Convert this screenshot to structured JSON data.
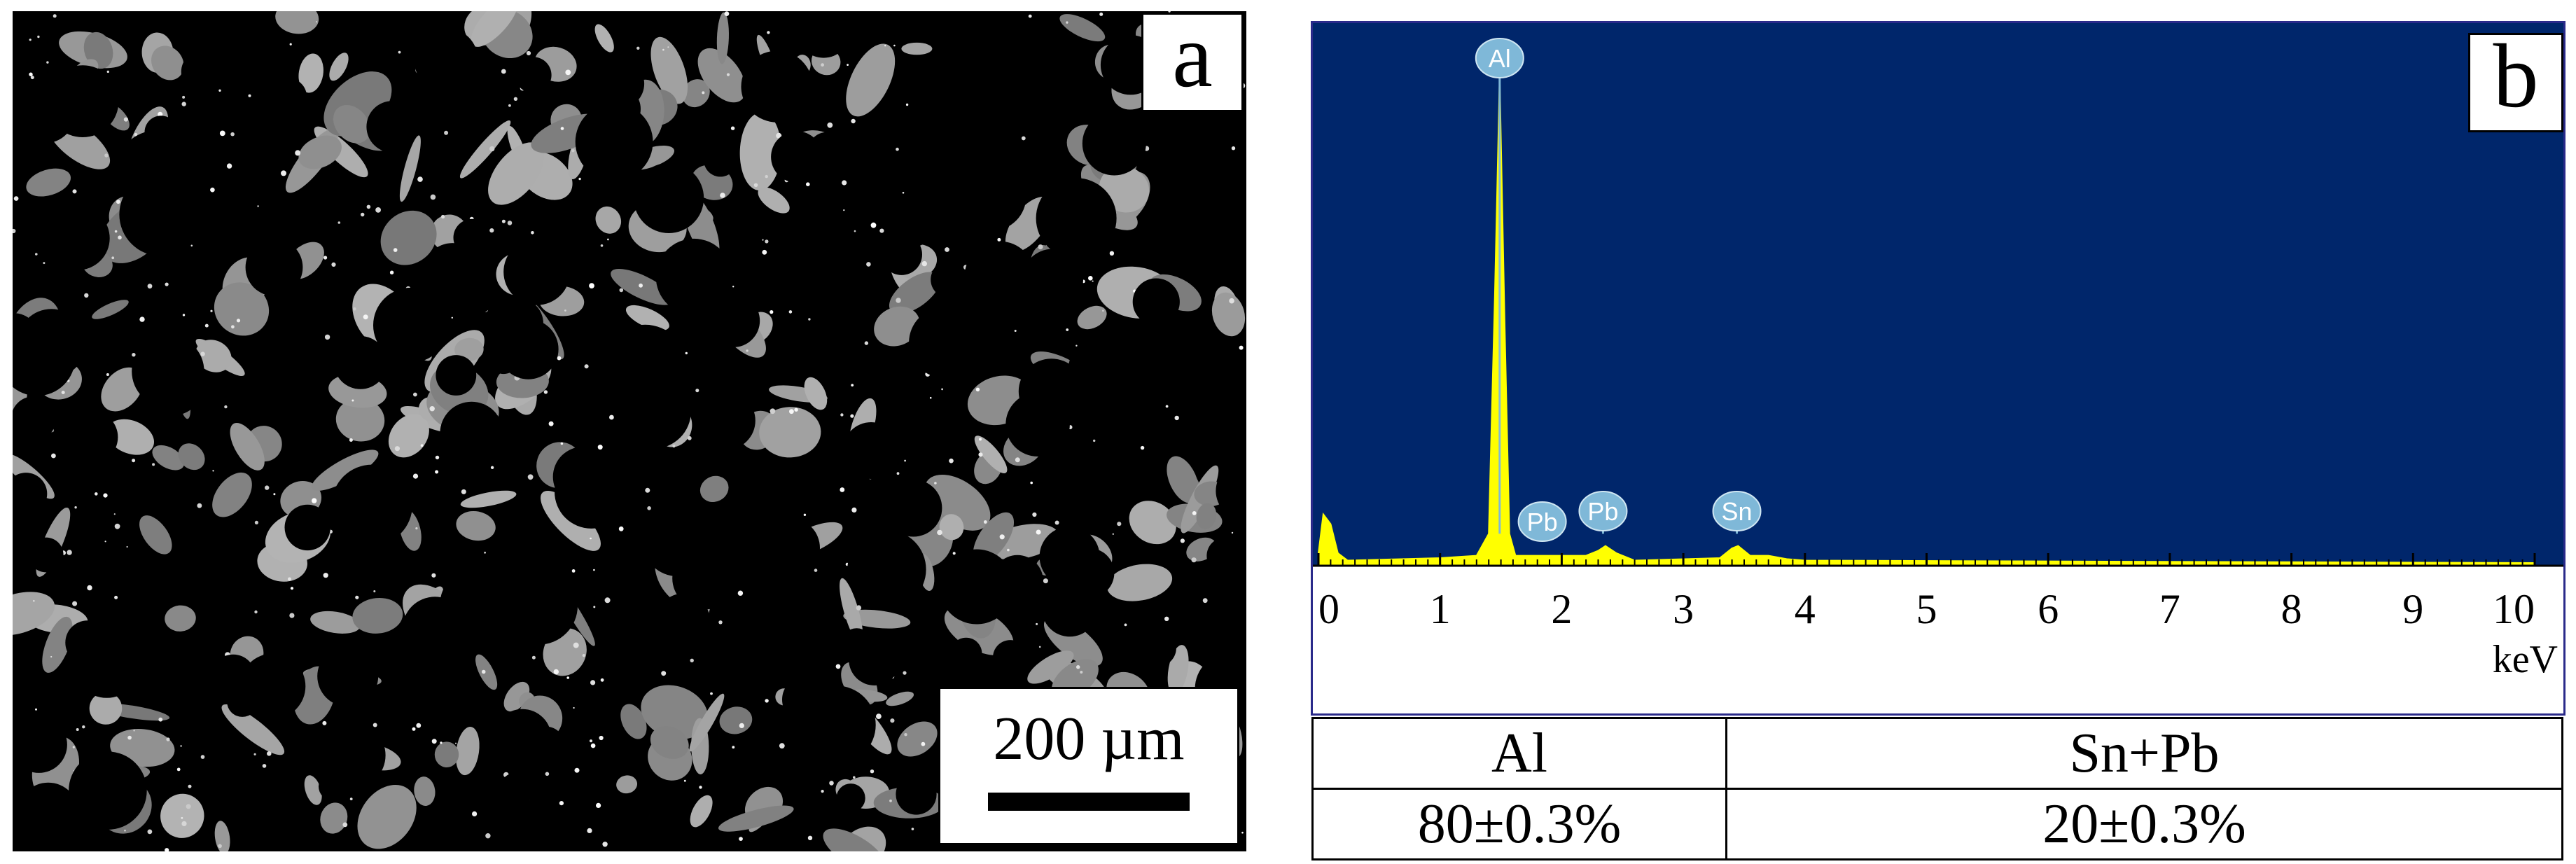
{
  "panel_a": {
    "label": "a",
    "scale_bar": "200 µm"
  },
  "panel_b": {
    "label": "b"
  },
  "chart_data": {
    "type": "line",
    "title": "",
    "xlabel": "keV",
    "ylabel": "",
    "xlim": [
      0,
      10
    ],
    "x_ticks": [
      0,
      1,
      2,
      3,
      4,
      5,
      6,
      7,
      8,
      9,
      10
    ],
    "grid": false,
    "series": [
      {
        "x": [
          0,
          0.04,
          0.1,
          0.16,
          0.24,
          1.0,
          1.3,
          1.4,
          1.45,
          1.49,
          1.53,
          1.57,
          1.62,
          1.75,
          1.85,
          2.2,
          2.3,
          2.36,
          2.45,
          2.6,
          3.3,
          3.4,
          3.45,
          3.55,
          3.7,
          3.85,
          4.0,
          10.0
        ],
        "y": [
          0.02,
          0.1,
          0.08,
          0.02,
          0.005,
          0.01,
          0.015,
          0.06,
          0.55,
          1.0,
          0.5,
          0.06,
          0.015,
          0.015,
          0.015,
          0.015,
          0.025,
          0.035,
          0.02,
          0.005,
          0.01,
          0.03,
          0.035,
          0.015,
          0.015,
          0.008,
          0.005,
          0.0
        ]
      }
    ],
    "peak_labels": [
      {
        "label": "Al",
        "x": 1.49
      },
      {
        "label": "Pb",
        "x": 1.84
      },
      {
        "label": "Pb",
        "x": 2.34
      },
      {
        "label": "Sn",
        "x": 3.44
      }
    ],
    "colors": {
      "background": "#00266b",
      "fill": "#ffff00",
      "axis": "#000000",
      "label_bubble": "#7fb8d8"
    }
  },
  "table": {
    "headers": [
      "Al",
      "Sn+Pb"
    ],
    "values": [
      "80±0.3%",
      "20±0.3%"
    ]
  }
}
